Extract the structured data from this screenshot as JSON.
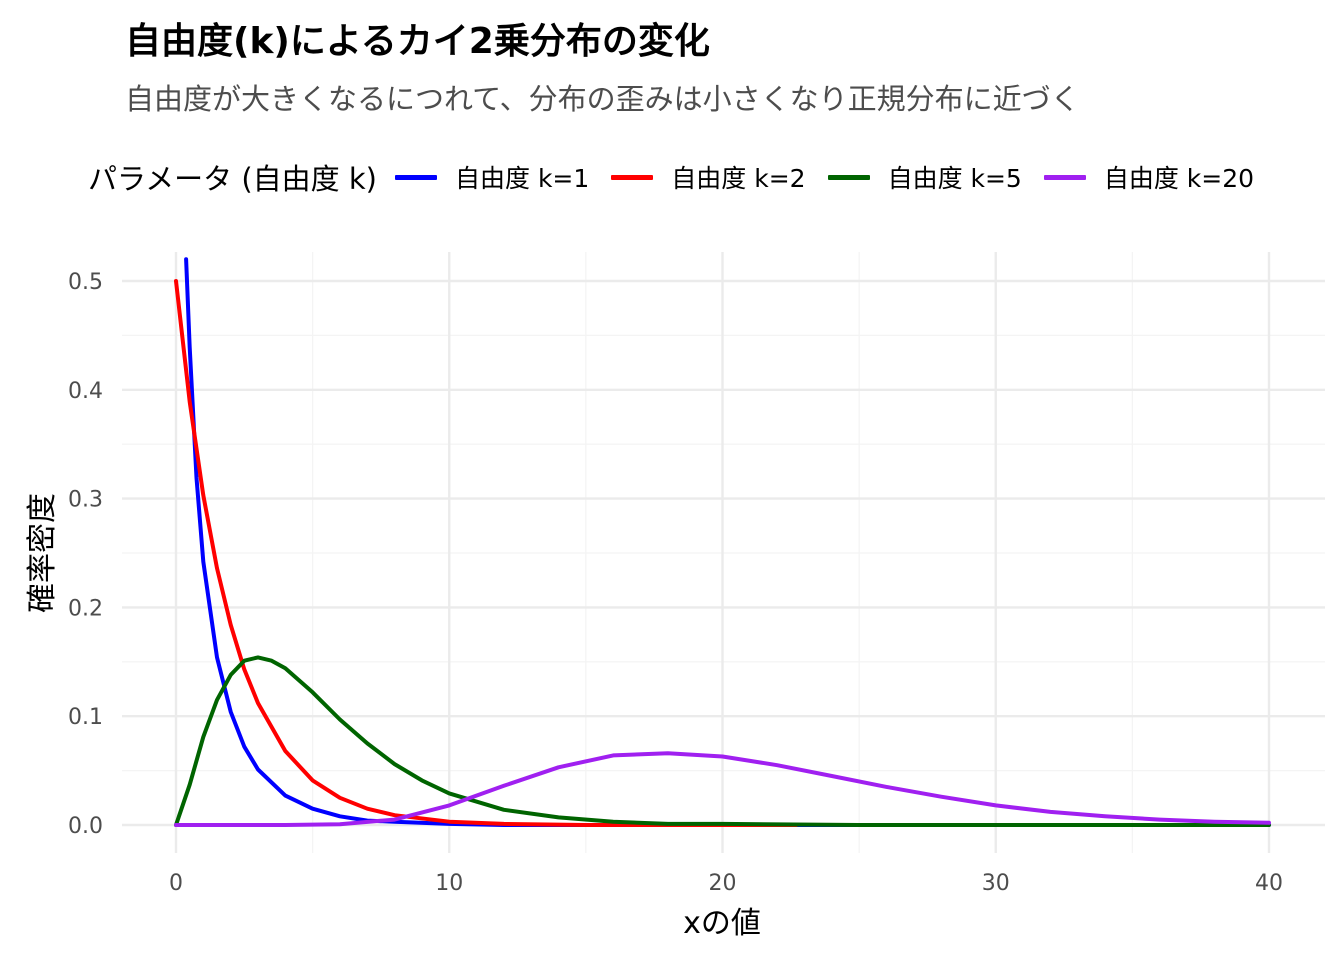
{
  "title": "自由度(k)によるカイ2乗分布の変化",
  "subtitle": "自由度が大きくなるにつれて、分布の歪みは小さくなり正規分布に近づく",
  "colors": {
    "grid_major": "#ebebeb",
    "grid_minor": "#f4f4f4",
    "tick_text": "#4d4d4d"
  },
  "chart_data": {
    "type": "line",
    "title": "自由度(k)によるカイ2乗分布の変化",
    "subtitle": "自由度が大きくなるにつれて、分布の歪みは小さくなり正規分布に近づく",
    "xlabel": "xの値",
    "ylabel": "確率密度",
    "xlim": [
      0,
      40
    ],
    "ylim": [
      0,
      0.52
    ],
    "x_ticks": [
      "0",
      "10",
      "20",
      "30",
      "40"
    ],
    "y_ticks": [
      "0.0",
      "0.1",
      "0.2",
      "0.3",
      "0.4",
      "0.5"
    ],
    "grid": true,
    "legend_title": "パラメータ (自由度 k)",
    "legend_position": "top",
    "series": [
      {
        "name": "自由度 k=1",
        "color": "#0000ff",
        "x": [
          0.37,
          0.5,
          0.75,
          1,
          1.5,
          2,
          2.5,
          3,
          4,
          5,
          6,
          7,
          8,
          10,
          12,
          15,
          20,
          25,
          30,
          40
        ],
        "y": [
          0.52,
          0.439,
          0.319,
          0.242,
          0.154,
          0.104,
          0.072,
          0.051,
          0.027,
          0.015,
          0.008,
          0.004,
          0.003,
          0.001,
          0.0,
          0.0,
          0.0,
          0.0,
          0.0,
          0.0
        ]
      },
      {
        "name": "自由度 k=2",
        "color": "#ff0000",
        "x": [
          0,
          0.5,
          1,
          1.5,
          2,
          2.5,
          3,
          4,
          5,
          6,
          7,
          8,
          10,
          12,
          15,
          18,
          22.7
        ],
        "y": [
          0.5,
          0.389,
          0.303,
          0.236,
          0.184,
          0.143,
          0.112,
          0.068,
          0.041,
          0.025,
          0.015,
          0.009,
          0.003,
          0.001,
          0.0,
          0.0,
          0.0
        ]
      },
      {
        "name": "自由度 k=5",
        "color": "#006400",
        "x": [
          0,
          0.5,
          1,
          1.5,
          2,
          2.5,
          3,
          3.5,
          4,
          5,
          6,
          7,
          8,
          9,
          10,
          12,
          14,
          16,
          18,
          20,
          25,
          30,
          40
        ],
        "y": [
          0,
          0.037,
          0.081,
          0.115,
          0.138,
          0.151,
          0.154,
          0.151,
          0.144,
          0.122,
          0.097,
          0.075,
          0.056,
          0.041,
          0.029,
          0.014,
          0.007,
          0.003,
          0.001,
          0.001,
          0.0,
          0.0,
          0.0
        ]
      },
      {
        "name": "自由度 k=20",
        "color": "#a020f0",
        "x": [
          0,
          2,
          4,
          6,
          8,
          10,
          12,
          14,
          16,
          18,
          20,
          22,
          24,
          26,
          28,
          30,
          32,
          34,
          36,
          38,
          40
        ],
        "y": [
          0,
          0.0,
          0.0,
          0.0007,
          0.005,
          0.018,
          0.036,
          0.053,
          0.064,
          0.066,
          0.063,
          0.055,
          0.045,
          0.035,
          0.026,
          0.018,
          0.012,
          0.008,
          0.005,
          0.003,
          0.002
        ]
      }
    ]
  }
}
